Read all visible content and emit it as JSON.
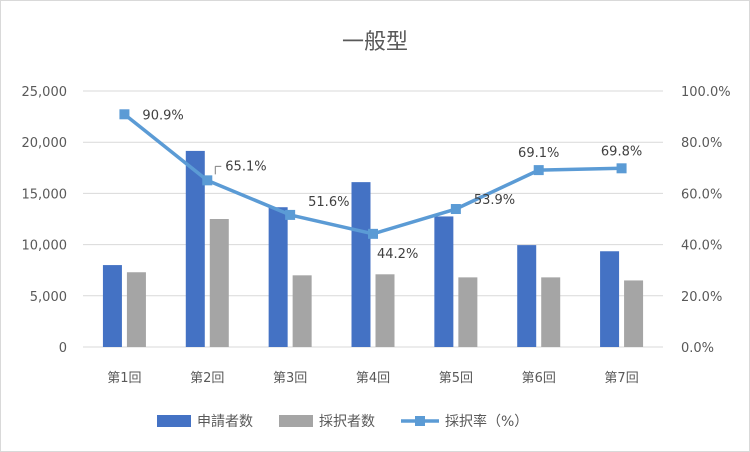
{
  "chart_data": {
    "type": "bar",
    "title": "一般型",
    "categories": [
      "第1回",
      "第2回",
      "第3回",
      "第4回",
      "第5回",
      "第6回",
      "第7回"
    ],
    "series": [
      {
        "name": "申請者数",
        "type": "bar",
        "axis": "left",
        "color": "#4472c4",
        "values": [
          8000,
          19150,
          13650,
          16100,
          12750,
          9950,
          9350
        ]
      },
      {
        "name": "採択者数",
        "type": "bar",
        "axis": "left",
        "color": "#a5a5a5",
        "values": [
          7300,
          12500,
          7000,
          7100,
          6800,
          6800,
          6500
        ]
      },
      {
        "name": "採択率（%）",
        "type": "line",
        "axis": "right",
        "color": "#5b9bd5",
        "marker": "square",
        "values": [
          90.9,
          65.1,
          51.6,
          44.2,
          53.9,
          69.1,
          69.8
        ],
        "data_labels": [
          "90.9%",
          "65.1%",
          "51.6%",
          "44.2%",
          "53.9%",
          "69.1%",
          "69.8%"
        ]
      }
    ],
    "y_left": {
      "ylim": [
        0,
        25000
      ],
      "ticks": [
        0,
        5000,
        10000,
        15000,
        20000,
        25000
      ],
      "tick_labels": [
        "0",
        "5,000",
        "10,000",
        "15,000",
        "20,000",
        "25,000"
      ]
    },
    "y_right": {
      "ylim": [
        0,
        100
      ],
      "ticks": [
        0,
        20,
        40,
        60,
        80,
        100
      ],
      "tick_labels": [
        "0.0%",
        "20.0%",
        "40.0%",
        "60.0%",
        "80.0%",
        "100.0%"
      ]
    },
    "grid": true,
    "legend_position": "bottom"
  }
}
